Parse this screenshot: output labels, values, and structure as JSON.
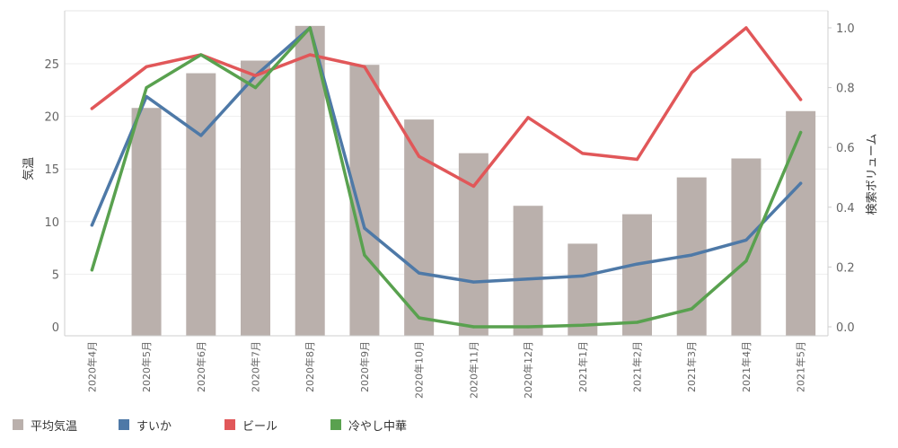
{
  "chart_data": {
    "type": "bar+line",
    "categories": [
      "2020年4月",
      "2020年5月",
      "2020年6月",
      "2020年7月",
      "2020年8月",
      "2020年9月",
      "2020年10月",
      "2020年11月",
      "2020年12月",
      "2021年1月",
      "2021年2月",
      "2021年3月",
      "2021年4月",
      "2021年5月"
    ],
    "bar_series": {
      "name": "平均気温",
      "axis": "left",
      "color": "#bab0ac",
      "values": [
        null,
        20.8,
        24.1,
        25.3,
        28.6,
        24.9,
        19.7,
        16.5,
        11.5,
        7.9,
        10.7,
        14.2,
        16.0,
        20.5
      ]
    },
    "line_series": [
      {
        "name": "すいか",
        "axis": "right",
        "color": "#4e79a7",
        "values": [
          0.34,
          0.77,
          0.64,
          0.84,
          1.0,
          0.33,
          0.18,
          0.15,
          0.16,
          0.17,
          0.21,
          0.24,
          0.29,
          0.48
        ]
      },
      {
        "name": "ビール",
        "axis": "right",
        "color": "#e15759",
        "values": [
          0.73,
          0.87,
          0.91,
          0.84,
          0.91,
          0.87,
          0.57,
          0.47,
          0.7,
          0.58,
          0.56,
          0.85,
          1.0,
          0.76
        ]
      },
      {
        "name": "冷やし中華",
        "axis": "right",
        "color": "#59a14f",
        "values": [
          0.19,
          0.8,
          0.91,
          0.8,
          1.0,
          0.24,
          0.03,
          0.0,
          0.0,
          0.005,
          0.015,
          0.06,
          0.22,
          0.65
        ]
      }
    ],
    "ylabel_left": "気温",
    "ylabel_right": "検索ボリューム",
    "ylim_left": [
      0,
      28.5
    ],
    "yticks_left": [
      0,
      5,
      10,
      15,
      20,
      25
    ],
    "ylim_right": [
      0,
      1.0
    ],
    "yticks_right": [
      "0.0",
      "0.2",
      "0.4",
      "0.6",
      "0.8",
      "1.0"
    ],
    "grid": true,
    "legend_position": "bottom-left"
  }
}
